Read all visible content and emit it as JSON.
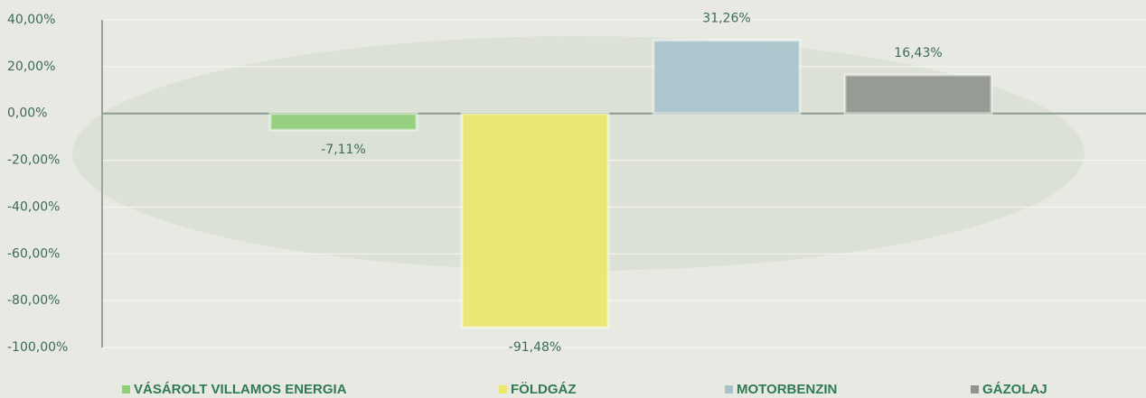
{
  "chart_data": {
    "type": "bar",
    "categories": [
      null
    ],
    "series": [
      {
        "name": "VÁSÁROLT VILLAMOS ENERGIA",
        "color": "#8fd07a",
        "values": [
          -7.11
        ],
        "value_labels": [
          "-7,11%"
        ]
      },
      {
        "name": "FÖLDGÁZ",
        "color": "#ece86a",
        "values": [
          -91.48
        ],
        "value_labels": [
          "-91,48%"
        ]
      },
      {
        "name": "MOTORBENZIN",
        "color": "#a9c3cb",
        "values": [
          31.26
        ],
        "value_labels": [
          "31,26%"
        ]
      },
      {
        "name": "GÁZOLAJ",
        "color": "#8f948c",
        "values": [
          16.43
        ],
        "value_labels": [
          "16,43%"
        ]
      }
    ],
    "ylim": [
      -100,
      40
    ],
    "yticks": [
      {
        "value": -100,
        "label": "-100,00%"
      },
      {
        "value": -80,
        "label": "-80,00%"
      },
      {
        "value": -60,
        "label": "-60,00%"
      },
      {
        "value": -40,
        "label": "-40,00%"
      },
      {
        "value": -20,
        "label": "-20,00%"
      },
      {
        "value": 0,
        "label": "0,00%"
      },
      {
        "value": 20,
        "label": "20,00%"
      },
      {
        "value": 40,
        "label": "40,00%"
      }
    ],
    "grid": true
  }
}
